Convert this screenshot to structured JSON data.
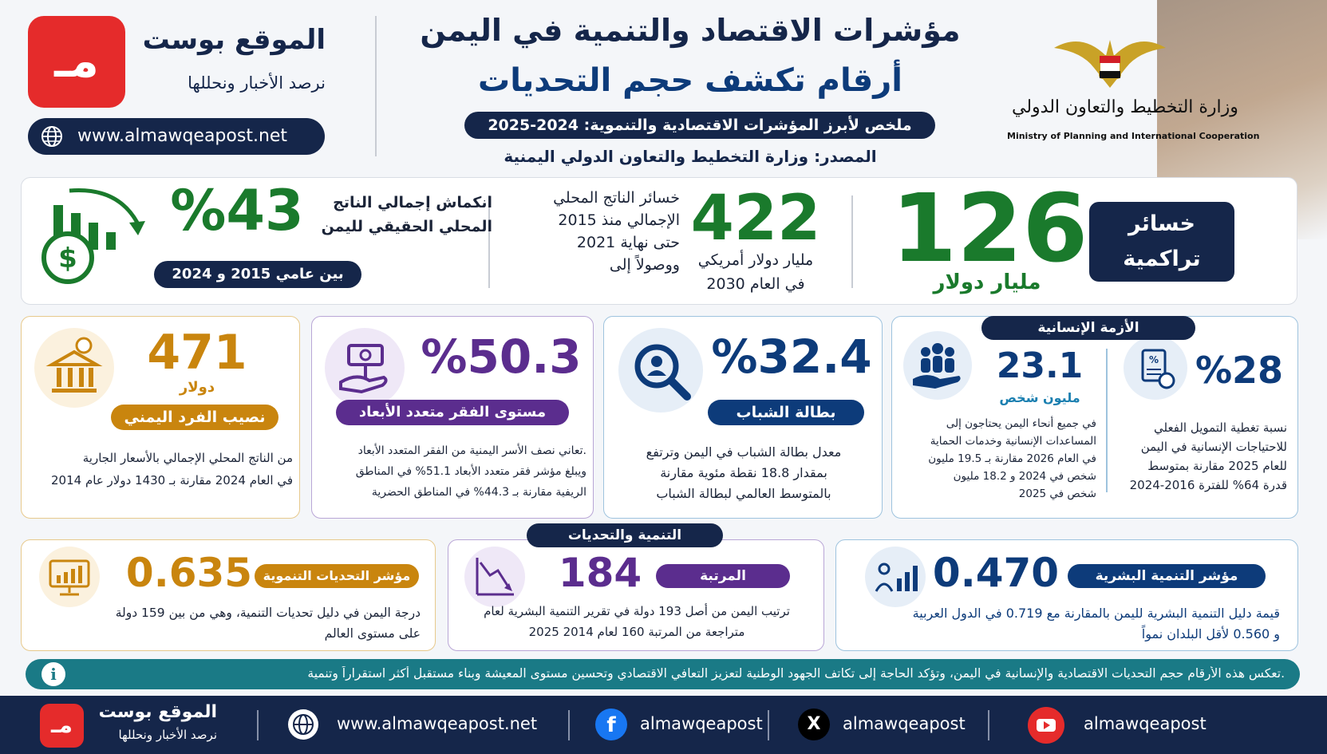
{
  "brand": {
    "name": "الموقع بوست",
    "tagline": "نرصد الأخبار ونحللها",
    "url": "www.almawqeapost.net",
    "logo_glyph": "ﻣـ"
  },
  "ministry": {
    "arabic": "وزارة التخطيط والتعاون الدولي",
    "english": "Ministry of Planning and International Cooperation"
  },
  "header": {
    "title1": "مؤشرات الاقتصاد والتنمية في اليمن",
    "title2": "أرقام تكشف حجم التحديات",
    "summary": "ملخص لأبرز المؤشرات الاقتصادية والتنموية: 2024-2025",
    "source": "المصدر: وزارة التخطيط والتعاون الدولي اليمنية"
  },
  "losses": {
    "label": "خسائر تراكمية",
    "value": "126",
    "unit": "مليار دولار",
    "v422": "422",
    "unit422": "مليار دولار أمريكي",
    "year422": "في العام 2030",
    "desc1": "خسائر الناتج المحلي",
    "desc2": "الإجمالي منذ 2015",
    "desc3": "حتى نهاية 2021",
    "desc4": "ووصولاً إلى",
    "pct": "%43",
    "pct_desc1": "انكماش إجمالي الناتج",
    "pct_desc2": "المحلي الحقيقي لليمن",
    "pct_range": "بين عامي 2015 و 2024"
  },
  "humanitarian": {
    "section": "الأزمة الإنسانية",
    "pct": "%28",
    "pct_desc": [
      "نسبة تغطية التمويل الفعلي",
      "للاحتياجات الإنسانية في اليمن",
      "للعام 2025 مقارنة بمتوسط",
      "قدرة 64% للفترة 2016-2024"
    ],
    "people": "23.1",
    "people_unit": "مليون شخص",
    "people_desc": [
      "في جميع أنحاء اليمن يحتاجون إلى",
      "المساعدات الإنسانية وخدمات الحماية",
      "في العام 2026 مقارنة بـ 19.5 مليون",
      "شخص في 2024 و 18.2 مليون",
      "شخص في 2025"
    ]
  },
  "youth": {
    "value": "%32.4",
    "label": "بطالة الشباب",
    "desc": [
      "معدل بطالة الشباب في اليمن وترتفع",
      "بمقدار 18.8 نقطة مئوية مقارنة",
      "بالمتوسط العالمي لبطالة الشباب"
    ]
  },
  "poverty": {
    "value": "%50.3",
    "label": "مستوى الفقر متعدد الأبعاد",
    "desc": [
      "تعاني نصف الأسر اليمنية من الفقر المتعدد الأبعاد.",
      "ويبلغ مؤشر فقر متعدد الأبعاد 51.1% في المناطق",
      "الريفية مقارنة بـ 44.3% في المناطق الحضرية"
    ]
  },
  "percapita": {
    "value": "471",
    "unit": "دولار",
    "label": "نصيب الفرد اليمني",
    "desc": [
      "من الناتج المحلي الإجمالي بالأسعار الجارية",
      "في العام 2024 مقارنة بـ 1430 دولار عام 2014"
    ]
  },
  "development": {
    "section": "التنمية والتحديات",
    "hdi_label": "مؤشر التنمية البشرية",
    "hdi_value": "0.470",
    "hdi_desc": [
      "قيمة دليل التنمية البشرية لليمن بالمقارنة مع 0.719 في الدول العربية",
      "و 0.560 لأقل البلدان نمواً"
    ],
    "rank_label": "المرتبة",
    "rank_value": "184",
    "rank_desc": [
      "ترتيب اليمن من أصل 193 دولة في تقرير التنمية البشرية لعام",
      "2025 متراجعة من المرتبة 160 لعام 2014"
    ],
    "dci_label": "مؤشر التحديات التنموية",
    "dci_value": "0.635",
    "dci_desc": [
      "درجة اليمن في دليل تحديات التنمية، وهي من بين 159 دولة",
      "على مستوى العالم"
    ]
  },
  "note": "تعكس هذه الأرقام حجم التحديات الاقتصادية والإنسانية في اليمن، وتؤكد الحاجة إلى تكاتف الجهود الوطنية لتعزيز التعافي الاقتصادي وتحسين مستوى المعيشة وبناء مستقبل أكثر استقراراً وتنمية.",
  "footer": {
    "url": "www.almawqeapost.net",
    "facebook": "almawqeapost",
    "x": "almawqeapost",
    "youtube": "almawqeapost"
  },
  "colors": {
    "navy": "#15264a",
    "green": "#1a7a2c",
    "purple": "#5b2d8e",
    "orange": "#c9850e",
    "blue": "#0d3b7a",
    "red": "#e52b2b"
  }
}
